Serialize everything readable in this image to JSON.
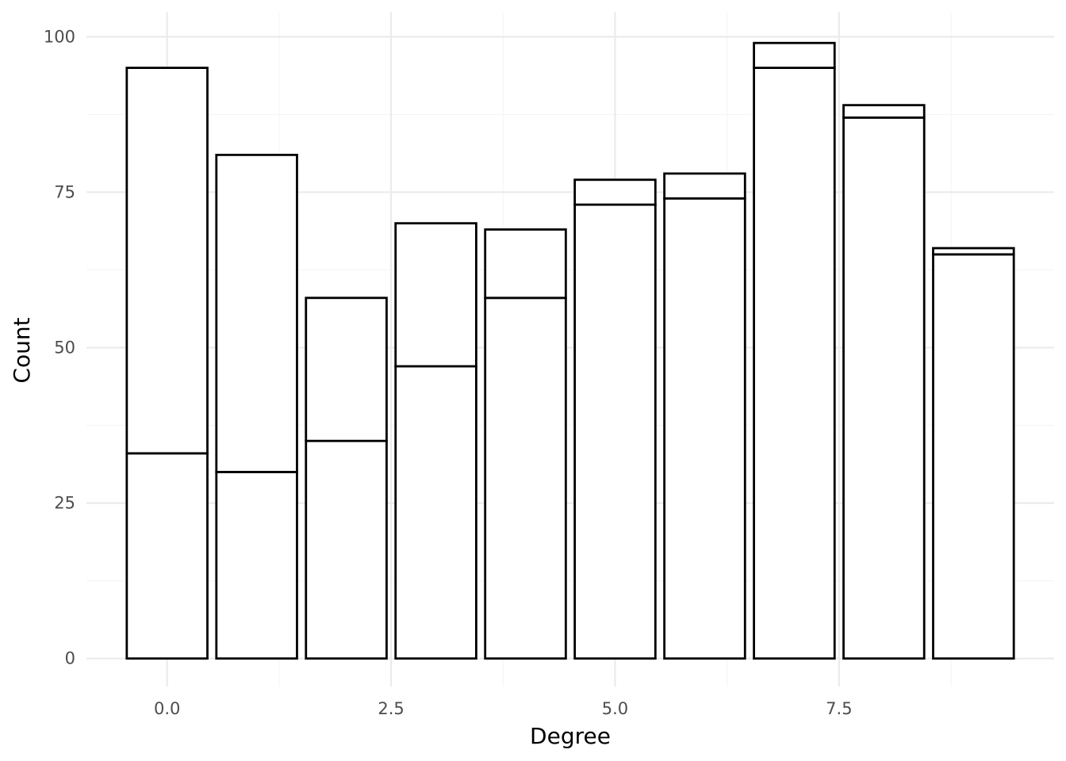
{
  "chart_data": {
    "type": "bar",
    "stacked": true,
    "title": "",
    "xlabel": "Degree",
    "ylabel": "Count",
    "x": [
      0,
      1,
      2,
      3,
      4,
      5,
      6,
      7,
      8,
      9
    ],
    "series": [
      {
        "values": [
          33,
          30,
          35,
          47,
          58,
          73,
          74,
          95,
          87,
          65
        ]
      },
      {
        "values": [
          62,
          51,
          23,
          23,
          11,
          4,
          4,
          4,
          2,
          1
        ]
      }
    ],
    "totals": [
      95,
      81,
      58,
      70,
      69,
      77,
      78,
      99,
      89,
      66
    ],
    "xlim": [
      -0.9,
      9.9
    ],
    "ylim": [
      -4.5,
      104
    ],
    "x_ticks": [
      0,
      2.5,
      5,
      7.5
    ],
    "x_tick_labels": [
      "0.0",
      "2.5",
      "5.0",
      "7.5"
    ],
    "y_ticks": [
      0,
      25,
      50,
      75,
      100
    ],
    "y_tick_labels": [
      "0",
      "25",
      "50",
      "75",
      "100"
    ],
    "grid": true,
    "legend": "none",
    "colors": {
      "bar_fill": "#ffffff",
      "bar_outline": "#000000",
      "grid": "#ebebeb"
    }
  }
}
